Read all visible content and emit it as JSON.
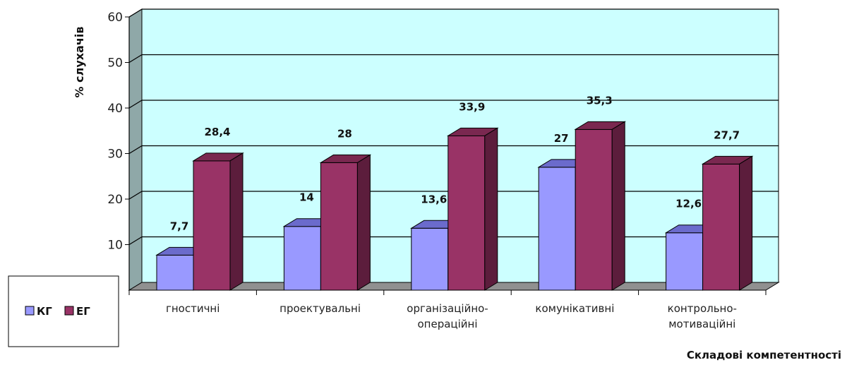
{
  "chart_data": {
    "type": "bar",
    "categories": [
      [
        "гностичні"
      ],
      [
        "проектувальні"
      ],
      [
        "організаційно-",
        "операційні"
      ],
      [
        "комунікативні"
      ],
      [
        "контрольно-",
        "мотиваційні"
      ]
    ],
    "series": [
      {
        "name": "КГ",
        "values": [
          7.7,
          14,
          13.6,
          27,
          12.6
        ],
        "labels": [
          "7,7",
          "14",
          "13,6",
          "27",
          "12,6"
        ],
        "color": "#9999ff",
        "top_color": "#6b6bcc",
        "side_color": "#5e5eb0"
      },
      {
        "name": "ЕГ",
        "values": [
          28.4,
          28,
          33.9,
          35.3,
          27.7
        ],
        "labels": [
          "28,4",
          "28",
          "33,9",
          "35,3",
          "27,7"
        ],
        "color": "#993366",
        "top_color": "#7a2850",
        "side_color": "#5c1d3c"
      }
    ],
    "ylabel": "% слухачів",
    "xlabel": "Складові компетентності",
    "ylim": [
      0,
      60
    ],
    "yticks": [
      10,
      20,
      30,
      40,
      50,
      60
    ],
    "grid": true,
    "legend": "left",
    "wall_color": "#ccffff",
    "floor_color": "#909090"
  }
}
